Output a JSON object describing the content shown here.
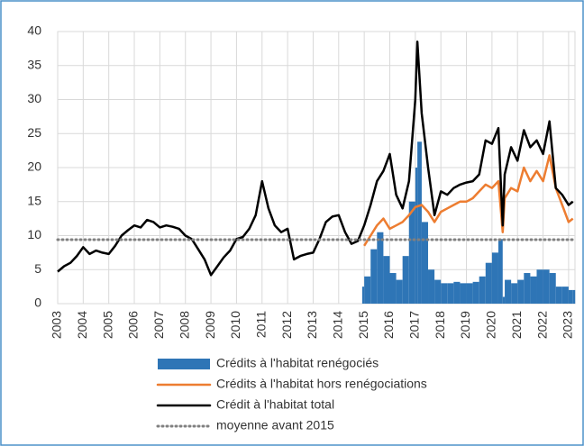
{
  "chart_data": {
    "type": "combo",
    "xlim": [
      2003,
      2023.25
    ],
    "xticks": [
      2003,
      2004,
      2005,
      2006,
      2007,
      2008,
      2009,
      2010,
      2011,
      2012,
      2013,
      2014,
      2015,
      2016,
      2017,
      2018,
      2019,
      2020,
      2021,
      2022,
      2023
    ],
    "ylim": [
      0,
      40
    ],
    "yticks": [
      0,
      5,
      10,
      15,
      20,
      25,
      30,
      35,
      40
    ],
    "grid": true,
    "legend": "bottom",
    "series": [
      {
        "name": "Crédits à l'habitat renégociés",
        "type": "bar",
        "color": "#2e75b6",
        "x": [
          2014.92,
          2015,
          2015.25,
          2015.5,
          2015.75,
          2016,
          2016.25,
          2016.5,
          2016.75,
          2017,
          2017.08,
          2017.25,
          2017.5,
          2017.75,
          2018,
          2018.25,
          2018.5,
          2018.75,
          2019,
          2019.25,
          2019.5,
          2019.75,
          2020,
          2020.25,
          2020.42,
          2020.5,
          2020.75,
          2021,
          2021.25,
          2021.5,
          2021.75,
          2022,
          2022.25,
          2022.5,
          2022.75,
          2023,
          2023.17
        ],
        "values": [
          2.5,
          4.0,
          8.0,
          10.5,
          7.0,
          4.5,
          3.5,
          7.0,
          15.0,
          20.0,
          23.8,
          12.0,
          5.0,
          3.5,
          3.0,
          3.0,
          3.2,
          3.0,
          3.0,
          3.2,
          4.0,
          6.0,
          7.5,
          9.5,
          1.0,
          3.5,
          3.0,
          3.5,
          4.5,
          4.0,
          5.0,
          5.0,
          4.5,
          2.5,
          2.5,
          2.0,
          2.0
        ]
      },
      {
        "name": "Crédits à l'habitat hors renégociations",
        "type": "line",
        "color": "#ed7d31",
        "x": [
          2015,
          2015.25,
          2015.5,
          2015.75,
          2016,
          2016.25,
          2016.5,
          2016.75,
          2017,
          2017.25,
          2017.5,
          2017.75,
          2018,
          2018.25,
          2018.5,
          2018.75,
          2019,
          2019.25,
          2019.5,
          2019.75,
          2020,
          2020.25,
          2020.42,
          2020.5,
          2020.75,
          2021,
          2021.25,
          2021.5,
          2021.75,
          2022,
          2022.25,
          2022.5,
          2022.75,
          2023,
          2023.17
        ],
        "values": [
          8.5,
          10.0,
          11.5,
          12.5,
          11.0,
          11.5,
          12.0,
          13.0,
          14.2,
          14.5,
          13.5,
          12.0,
          13.5,
          14.0,
          14.5,
          15.0,
          15.0,
          15.5,
          16.5,
          17.5,
          17.0,
          18.0,
          10.5,
          15.5,
          17.0,
          16.5,
          20.0,
          18.0,
          19.5,
          18.0,
          21.8,
          17.0,
          14.5,
          12.0,
          12.5
        ]
      },
      {
        "name": "Crédit à l'habitat total",
        "type": "line",
        "color": "#000000",
        "x": [
          2003,
          2003.25,
          2003.5,
          2003.75,
          2004,
          2004.25,
          2004.5,
          2004.75,
          2005,
          2005.25,
          2005.5,
          2005.75,
          2006,
          2006.25,
          2006.5,
          2006.75,
          2007,
          2007.25,
          2007.5,
          2007.75,
          2008,
          2008.25,
          2008.5,
          2008.75,
          2009,
          2009.25,
          2009.5,
          2009.75,
          2010,
          2010.25,
          2010.5,
          2010.75,
          2011,
          2011.25,
          2011.5,
          2011.75,
          2012,
          2012.25,
          2012.5,
          2012.75,
          2013,
          2013.25,
          2013.5,
          2013.75,
          2014,
          2014.25,
          2014.5,
          2014.75,
          2015,
          2015.25,
          2015.5,
          2015.75,
          2016,
          2016.25,
          2016.5,
          2016.75,
          2017,
          2017.08,
          2017.25,
          2017.5,
          2017.75,
          2018,
          2018.25,
          2018.5,
          2018.75,
          2019,
          2019.25,
          2019.5,
          2019.75,
          2020,
          2020.25,
          2020.42,
          2020.5,
          2020.75,
          2021,
          2021.25,
          2021.5,
          2021.75,
          2022,
          2022.25,
          2022.5,
          2022.75,
          2023,
          2023.17
        ],
        "values": [
          4.7,
          5.5,
          6.0,
          7.0,
          8.3,
          7.3,
          7.8,
          7.5,
          7.3,
          8.5,
          10.0,
          10.8,
          11.5,
          11.2,
          12.3,
          12.0,
          11.2,
          11.5,
          11.3,
          11.0,
          10.0,
          9.5,
          8.0,
          6.5,
          4.2,
          5.5,
          6.8,
          7.8,
          9.5,
          9.8,
          11.0,
          13.0,
          18.0,
          14.0,
          11.5,
          10.5,
          11.0,
          6.5,
          7.0,
          7.3,
          7.5,
          9.5,
          12.0,
          12.8,
          13.0,
          10.5,
          8.8,
          9.2,
          11.5,
          14.5,
          18.0,
          19.5,
          22.0,
          16.0,
          14.0,
          18.0,
          30.0,
          38.5,
          28.0,
          20.0,
          13.0,
          16.5,
          16.0,
          17.0,
          17.5,
          17.8,
          18.0,
          19.0,
          24.0,
          23.5,
          25.8,
          11.5,
          19.0,
          23.0,
          21.0,
          25.5,
          23.0,
          24.0,
          22.0,
          26.8,
          17.0,
          16.0,
          14.5,
          15.0
        ]
      },
      {
        "name": "moyenne avant 2015",
        "type": "dotted",
        "color": "#808080",
        "x": [
          2003,
          2023.25
        ],
        "values": [
          9.4,
          9.4
        ]
      }
    ]
  }
}
